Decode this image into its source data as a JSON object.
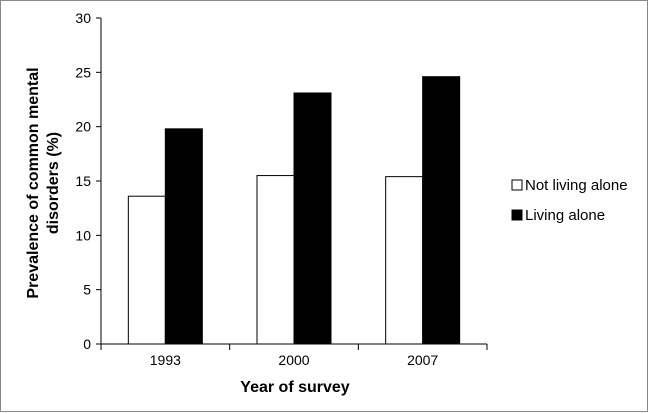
{
  "chart_data": {
    "type": "bar",
    "title": "",
    "xlabel": "Year of survey",
    "ylabel": "Prevalence of common mental disorders (%)",
    "ylabel_lines": [
      "Prevalence of common mental",
      "disorders (%)"
    ],
    "categories": [
      "1993",
      "2000",
      "2007"
    ],
    "series": [
      {
        "name": "Not living alone",
        "values": [
          13.6,
          15.5,
          15.4
        ],
        "fill": "#ffffff",
        "stroke": "#000000"
      },
      {
        "name": "Living alone",
        "values": [
          19.8,
          23.1,
          24.6
        ],
        "fill": "#000000",
        "stroke": "#000000"
      }
    ],
    "ylim": [
      0,
      30
    ],
    "yticks": [
      0,
      5,
      10,
      15,
      20,
      25,
      30
    ],
    "grid": false,
    "legend_position": "right"
  }
}
